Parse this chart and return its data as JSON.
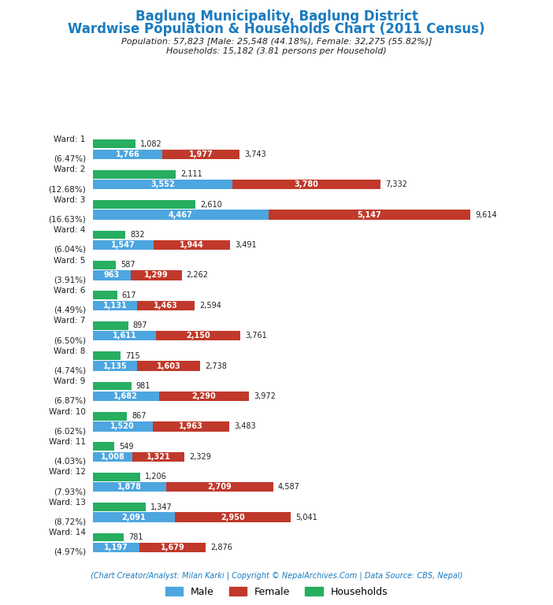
{
  "title_line1": "Baglung Municipality, Baglung District",
  "title_line2": "Wardwise Population & Households Chart (2011 Census)",
  "subtitle_line1": "Population: 57,823 [Male: 25,548 (44.18%), Female: 32,275 (55.82%)]",
  "subtitle_line2": "Households: 15,182 (3.81 persons per Household)",
  "footer": "(Chart Creator/Analyst: Milan Karki | Copyright © NepalArchives.Com | Data Source: CBS, Nepal)",
  "wards": [
    {
      "label1": "Ward: 1",
      "label2": "(6.47%)",
      "male": 1766,
      "female": 1977,
      "households": 1082,
      "total": 3743
    },
    {
      "label1": "Ward: 2",
      "label2": "(12.68%)",
      "male": 3552,
      "female": 3780,
      "households": 2111,
      "total": 7332
    },
    {
      "label1": "Ward: 3",
      "label2": "(16.63%)",
      "male": 4467,
      "female": 5147,
      "households": 2610,
      "total": 9614
    },
    {
      "label1": "Ward: 4",
      "label2": "(6.04%)",
      "male": 1547,
      "female": 1944,
      "households": 832,
      "total": 3491
    },
    {
      "label1": "Ward: 5",
      "label2": "(3.91%)",
      "male": 963,
      "female": 1299,
      "households": 587,
      "total": 2262
    },
    {
      "label1": "Ward: 6",
      "label2": "(4.49%)",
      "male": 1131,
      "female": 1463,
      "households": 617,
      "total": 2594
    },
    {
      "label1": "Ward: 7",
      "label2": "(6.50%)",
      "male": 1611,
      "female": 2150,
      "households": 897,
      "total": 3761
    },
    {
      "label1": "Ward: 8",
      "label2": "(4.74%)",
      "male": 1135,
      "female": 1603,
      "households": 715,
      "total": 2738
    },
    {
      "label1": "Ward: 9",
      "label2": "(6.87%)",
      "male": 1682,
      "female": 2290,
      "households": 981,
      "total": 3972
    },
    {
      "label1": "Ward: 10",
      "label2": "(6.02%)",
      "male": 1520,
      "female": 1963,
      "households": 867,
      "total": 3483
    },
    {
      "label1": "Ward: 11",
      "label2": "(4.03%)",
      "male": 1008,
      "female": 1321,
      "households": 549,
      "total": 2329
    },
    {
      "label1": "Ward: 12",
      "label2": "(7.93%)",
      "male": 1878,
      "female": 2709,
      "households": 1206,
      "total": 4587
    },
    {
      "label1": "Ward: 13",
      "label2": "(8.72%)",
      "male": 2091,
      "female": 2950,
      "households": 1347,
      "total": 5041
    },
    {
      "label1": "Ward: 14",
      "label2": "(4.97%)",
      "male": 1197,
      "female": 1679,
      "households": 781,
      "total": 2876
    }
  ],
  "color_male": "#4da6e0",
  "color_female": "#c0392b",
  "color_households": "#27ae60",
  "title_color": "#1a7bbf",
  "subtitle_color": "#222222",
  "footer_color": "#1a7bbf",
  "bg_color": "#ffffff",
  "xmax": 10800
}
